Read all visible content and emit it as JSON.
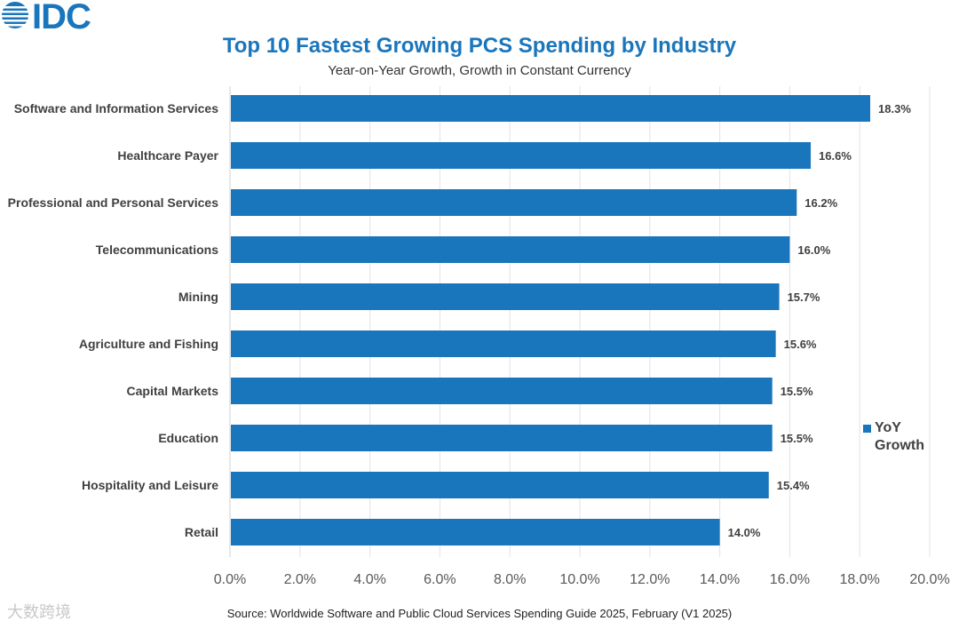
{
  "logo": {
    "text": "IDC"
  },
  "watermark": {
    "text": "大数跨境"
  },
  "chart_data": {
    "type": "bar",
    "orientation": "horizontal",
    "title": "Top 10 Fastest Growing PCS Spending by Industry",
    "subtitle": "Year-on-Year Growth, Growth in Constant Currency",
    "categories": [
      "Software and Information Services",
      "Healthcare Payer",
      "Professional and Personal Services",
      "Telecommunications",
      "Mining",
      "Agriculture and Fishing",
      "Capital Markets",
      "Education",
      "Hospitality and Leisure",
      "Retail"
    ],
    "values": [
      18.3,
      16.6,
      16.2,
      16.0,
      15.7,
      15.6,
      15.5,
      15.5,
      15.4,
      14.0
    ],
    "data_labels": [
      "18.3%",
      "16.6%",
      "16.2%",
      "16.0%",
      "15.7%",
      "15.6%",
      "15.5%",
      "15.5%",
      "15.4%",
      "14.0%"
    ],
    "xlim": [
      0,
      20
    ],
    "x_ticks": [
      0,
      2,
      4,
      6,
      8,
      10,
      12,
      14,
      16,
      18,
      20
    ],
    "x_tick_labels": [
      "0.0%",
      "2.0%",
      "4.0%",
      "6.0%",
      "8.0%",
      "10.0%",
      "12.0%",
      "14.0%",
      "16.0%",
      "18.0%",
      "20.0%"
    ],
    "series": [
      {
        "name": "YoY Growth"
      }
    ],
    "legend_position": "right",
    "grid": true,
    "bar_color": "#1a76bc",
    "source": "Source: Worldwide Software and Public Cloud Services Spending Guide 2025, February (V1 2025)"
  }
}
